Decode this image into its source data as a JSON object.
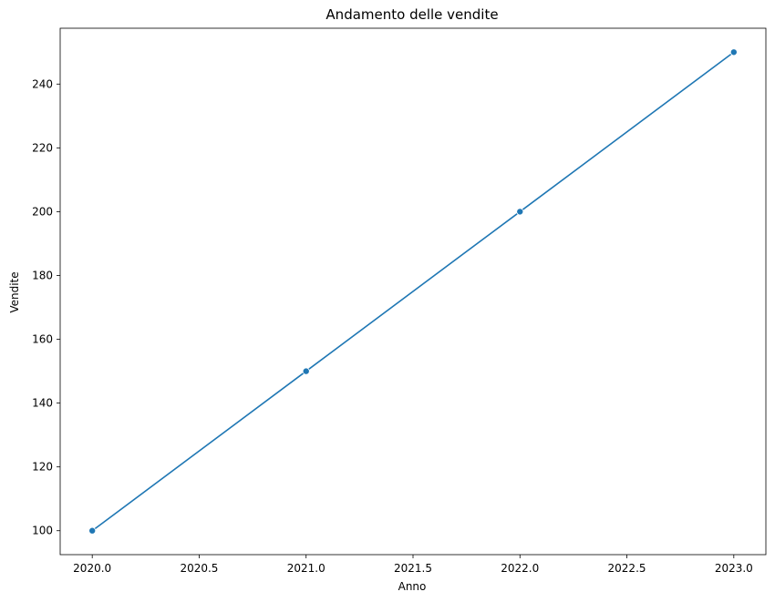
{
  "chart_data": {
    "type": "line",
    "title": "Andamento delle vendite",
    "xlabel": "Anno",
    "ylabel": "Vendite",
    "xlim": [
      2019.85,
      2023.15
    ],
    "ylim": [
      92.5,
      257.5
    ],
    "xticks": [
      2020.0,
      2020.5,
      2021.0,
      2021.5,
      2022.0,
      2022.5,
      2023.0
    ],
    "xtick_labels": [
      "2020.0",
      "2020.5",
      "2021.0",
      "2021.5",
      "2022.0",
      "2022.5",
      "2023.0"
    ],
    "yticks": [
      100,
      120,
      140,
      160,
      180,
      200,
      220,
      240
    ],
    "ytick_labels": [
      "100",
      "120",
      "140",
      "160",
      "180",
      "200",
      "220",
      "240"
    ],
    "grid": false,
    "series": [
      {
        "x": [
          2020,
          2021,
          2022,
          2023
        ],
        "y": [
          100,
          150,
          200,
          250
        ],
        "color": "#1f77b4",
        "marker": "circle"
      }
    ]
  }
}
